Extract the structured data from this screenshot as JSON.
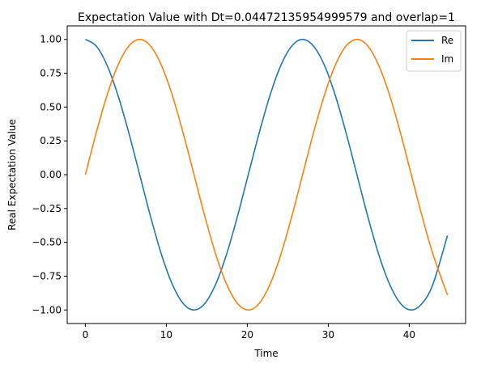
{
  "chart_data": {
    "type": "line",
    "title": "Expectation Value with Dt=0.04472135954999579 and overlap=1",
    "xlabel": "Time",
    "ylabel": "Real Expectation Value",
    "xlim": [
      -2.24,
      46.96
    ],
    "ylim": [
      -1.1,
      1.1
    ],
    "xticks": [
      0,
      10,
      20,
      30,
      40
    ],
    "xtick_labels": [
      "0",
      "10",
      "20",
      "30",
      "40"
    ],
    "yticks": [
      -1.0,
      -0.75,
      -0.5,
      -0.25,
      0.0,
      0.25,
      0.5,
      0.75,
      1.0
    ],
    "ytick_labels": [
      "−1.00",
      "−0.75",
      "−0.50",
      "−0.25",
      "0.00",
      "0.25",
      "0.50",
      "0.75",
      "1.00"
    ],
    "grid": false,
    "legend_position": "top-right",
    "x": [
      0.0,
      1.34,
      2.68,
      4.02,
      5.37,
      6.71,
      8.05,
      9.39,
      10.73,
      12.07,
      13.42,
      14.76,
      16.1,
      17.44,
      18.78,
      20.12,
      21.47,
      22.81,
      24.15,
      25.49,
      26.83,
      28.17,
      29.52,
      30.86,
      32.2,
      33.54,
      34.88,
      36.22,
      37.57,
      38.91,
      40.25,
      41.59,
      42.93,
      44.72
    ],
    "series": [
      {
        "name": "Re",
        "color": "#1f77b4",
        "values": [
          1.0,
          0.951,
          0.809,
          0.588,
          0.309,
          0.0,
          -0.309,
          -0.588,
          -0.809,
          -0.951,
          -1.0,
          -0.951,
          -0.809,
          -0.588,
          -0.309,
          0.0,
          0.309,
          0.588,
          0.809,
          0.951,
          1.0,
          0.951,
          0.809,
          0.588,
          0.309,
          0.0,
          -0.309,
          -0.588,
          -0.809,
          -0.951,
          -1.0,
          -0.951,
          -0.809,
          -0.45
        ]
      },
      {
        "name": "Im",
        "color": "#ff7f0e",
        "values": [
          0.0,
          0.309,
          0.588,
          0.809,
          0.951,
          1.0,
          0.951,
          0.809,
          0.588,
          0.309,
          0.0,
          -0.309,
          -0.588,
          -0.809,
          -0.951,
          -1.0,
          -0.951,
          -0.809,
          -0.588,
          -0.309,
          0.0,
          0.309,
          0.588,
          0.809,
          0.951,
          1.0,
          0.951,
          0.809,
          0.588,
          0.309,
          0.0,
          -0.309,
          -0.588,
          -0.89
        ]
      }
    ]
  }
}
